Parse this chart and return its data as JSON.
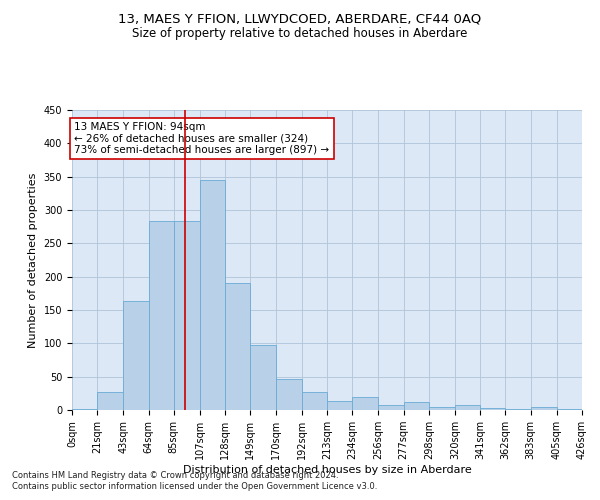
{
  "title": "13, MAES Y FFION, LLWYDCOED, ABERDARE, CF44 0AQ",
  "subtitle": "Size of property relative to detached houses in Aberdare",
  "xlabel": "Distribution of detached houses by size in Aberdare",
  "ylabel": "Number of detached properties",
  "footnote1": "Contains HM Land Registry data © Crown copyright and database right 2024.",
  "footnote2": "Contains public sector information licensed under the Open Government Licence v3.0.",
  "annotation_title": "13 MAES Y FFION: 94sqm",
  "annotation_line1": "← 26% of detached houses are smaller (324)",
  "annotation_line2": "73% of semi-detached houses are larger (897) →",
  "property_sqm": 94,
  "bar_color": "#b8d0e8",
  "bar_edge_color": "#6aaad4",
  "vline_color": "#cc0000",
  "annotation_box_color": "#ffffff",
  "annotation_box_edge": "#cc0000",
  "background_color": "#ffffff",
  "plot_bg_color": "#dce8f5",
  "grid_color": "#b0c4d8",
  "bin_edges": [
    0,
    21,
    43,
    64,
    85,
    107,
    128,
    149,
    170,
    192,
    213,
    234,
    256,
    277,
    298,
    320,
    341,
    362,
    383,
    405,
    426
  ],
  "bar_heights": [
    2,
    27,
    163,
    283,
    283,
    345,
    190,
    98,
    47,
    27,
    14,
    19,
    7,
    12,
    4,
    7,
    3,
    2,
    5,
    2
  ],
  "ylim": [
    0,
    450
  ],
  "yticks": [
    0,
    50,
    100,
    150,
    200,
    250,
    300,
    350,
    400,
    450
  ],
  "title_fontsize": 9.5,
  "subtitle_fontsize": 8.5,
  "axis_label_fontsize": 8,
  "tick_fontsize": 7,
  "annotation_fontsize": 7.5,
  "footnote_fontsize": 6
}
